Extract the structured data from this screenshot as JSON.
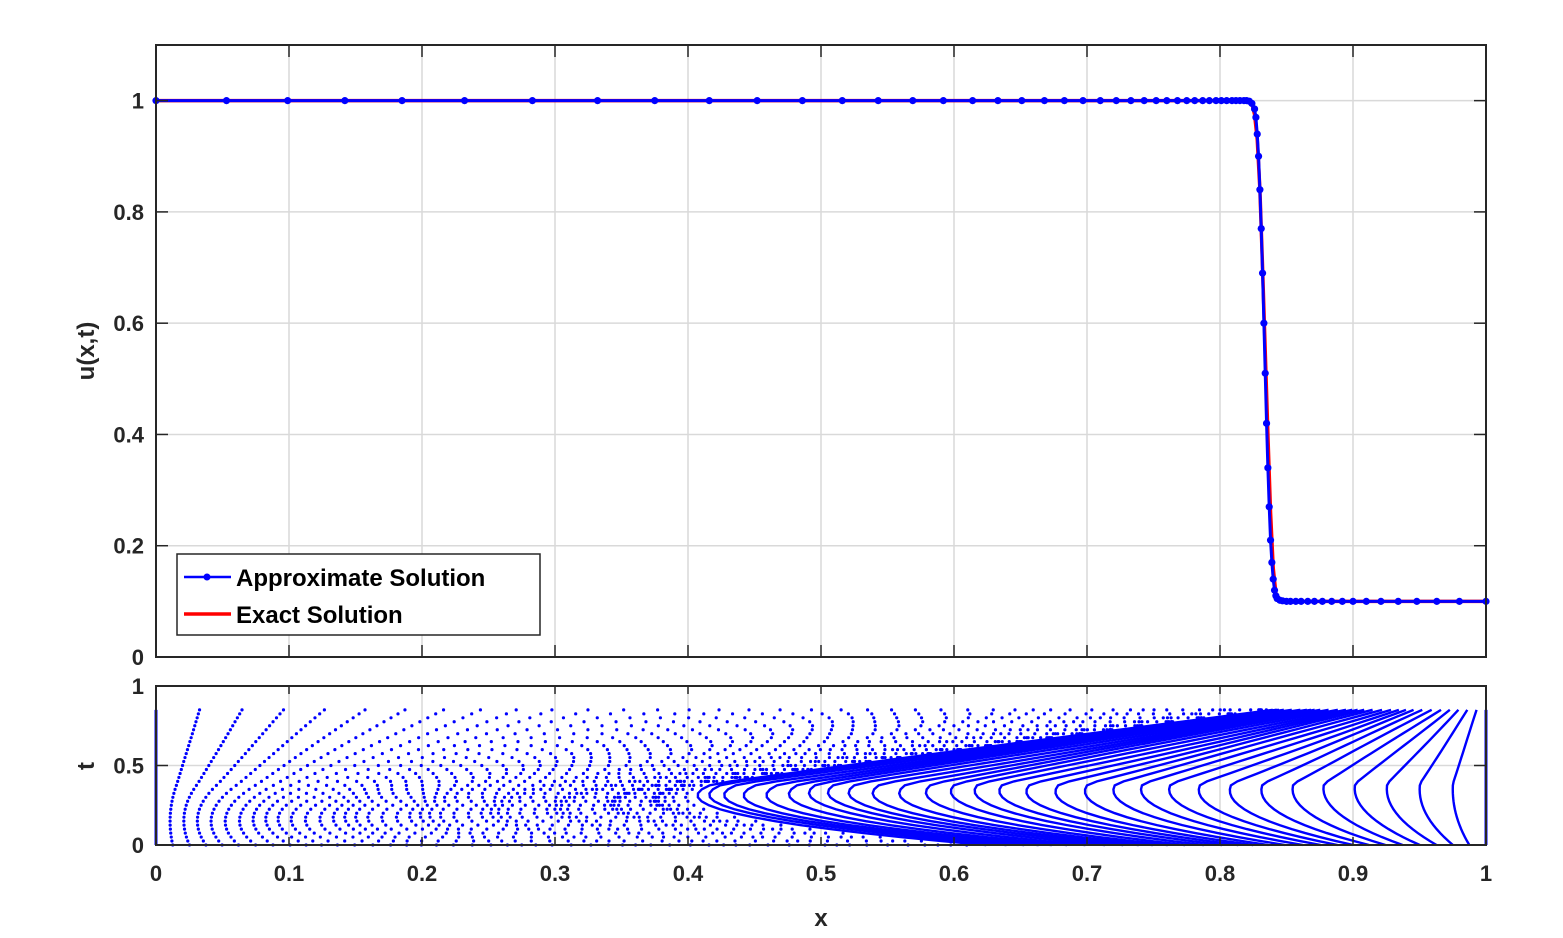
{
  "chart_data": [
    {
      "type": "line",
      "panel": "solution",
      "xlabel": "",
      "ylabel": "u(x,t)",
      "xlim": [
        0,
        1
      ],
      "ylim": [
        0,
        1.1
      ],
      "xticks": [
        0,
        0.1,
        0.2,
        0.3,
        0.4,
        0.5,
        0.6,
        0.7,
        0.8,
        0.9,
        1
      ],
      "xtick_labels_shown": false,
      "yticks": [
        0,
        0.2,
        0.4,
        0.6,
        0.8,
        1
      ],
      "ytick_labels": [
        "0",
        "0.2",
        "0.4",
        "0.6",
        "0.8",
        "1"
      ],
      "grid": true,
      "legend_position": "bottom-left",
      "series": [
        {
          "name": "Approximate Solution",
          "color": "#0000ff",
          "marker": "dot",
          "x": [
            0,
            0.053,
            0.099,
            0.142,
            0.185,
            0.232,
            0.283,
            0.332,
            0.375,
            0.416,
            0.452,
            0.486,
            0.516,
            0.543,
            0.569,
            0.592,
            0.614,
            0.633,
            0.651,
            0.668,
            0.683,
            0.697,
            0.71,
            0.722,
            0.733,
            0.743,
            0.752,
            0.76,
            0.768,
            0.775,
            0.781,
            0.787,
            0.792,
            0.797,
            0.801,
            0.805,
            0.809,
            0.812,
            0.815,
            0.818,
            0.82,
            0.822,
            0.824,
            0.826,
            0.827,
            0.828,
            0.829,
            0.83,
            0.831,
            0.832,
            0.833,
            0.834,
            0.835,
            0.836,
            0.837,
            0.838,
            0.839,
            0.84,
            0.841,
            0.842,
            0.843,
            0.845,
            0.847,
            0.85,
            0.853,
            0.857,
            0.861,
            0.866,
            0.871,
            0.877,
            0.884,
            0.892,
            0.9,
            0.91,
            0.921,
            0.934,
            0.948,
            0.963,
            0.98,
            1
          ],
          "y": [
            1,
            1,
            1,
            1,
            1,
            1,
            1,
            1,
            1,
            1,
            1,
            1,
            1,
            1,
            1,
            1,
            1,
            1,
            1,
            1,
            1,
            1,
            1,
            1,
            1,
            1,
            1,
            1,
            1,
            1,
            1,
            1,
            1,
            1,
            1,
            1,
            1,
            1,
            1,
            1,
            1,
            0.999,
            0.995,
            0.985,
            0.97,
            0.94,
            0.9,
            0.84,
            0.77,
            0.69,
            0.6,
            0.51,
            0.42,
            0.34,
            0.27,
            0.21,
            0.17,
            0.14,
            0.12,
            0.11,
            0.105,
            0.102,
            0.101,
            0.1,
            0.1,
            0.1,
            0.1,
            0.1,
            0.1,
            0.1,
            0.1,
            0.1,
            0.1,
            0.1,
            0.1,
            0.1,
            0.1,
            0.1,
            0.1,
            0.1
          ]
        },
        {
          "name": "Exact Solution",
          "color": "#ff0000",
          "marker": "none",
          "x": [
            0,
            0.82,
            0.824,
            0.826,
            0.828,
            0.83,
            0.832,
            0.834,
            0.836,
            0.838,
            0.84,
            0.842,
            0.845,
            0.85,
            1
          ],
          "y": [
            1,
            1,
            0.995,
            0.975,
            0.93,
            0.84,
            0.7,
            0.55,
            0.4,
            0.26,
            0.16,
            0.115,
            0.102,
            0.1,
            0.1
          ]
        }
      ]
    },
    {
      "type": "scatter",
      "panel": "mesh-trajectories",
      "xlabel": "x",
      "ylabel": "t",
      "xlim": [
        0,
        1
      ],
      "ylim": [
        0,
        1
      ],
      "xticks": [
        0,
        0.1,
        0.2,
        0.3,
        0.4,
        0.5,
        0.6,
        0.7,
        0.8,
        0.9,
        1
      ],
      "xtick_labels": [
        "0",
        "0.1",
        "0.2",
        "0.3",
        "0.4",
        "0.5",
        "0.6",
        "0.7",
        "0.8",
        "0.9",
        "1"
      ],
      "yticks": [
        0,
        0.5,
        1
      ],
      "ytick_labels": [
        "0",
        "0.5",
        "1"
      ],
      "grid": true,
      "color": "#0000ff",
      "t_end": 0.85,
      "shock_x_at_t_end": 0.833,
      "trajectory_count": 80
    }
  ]
}
